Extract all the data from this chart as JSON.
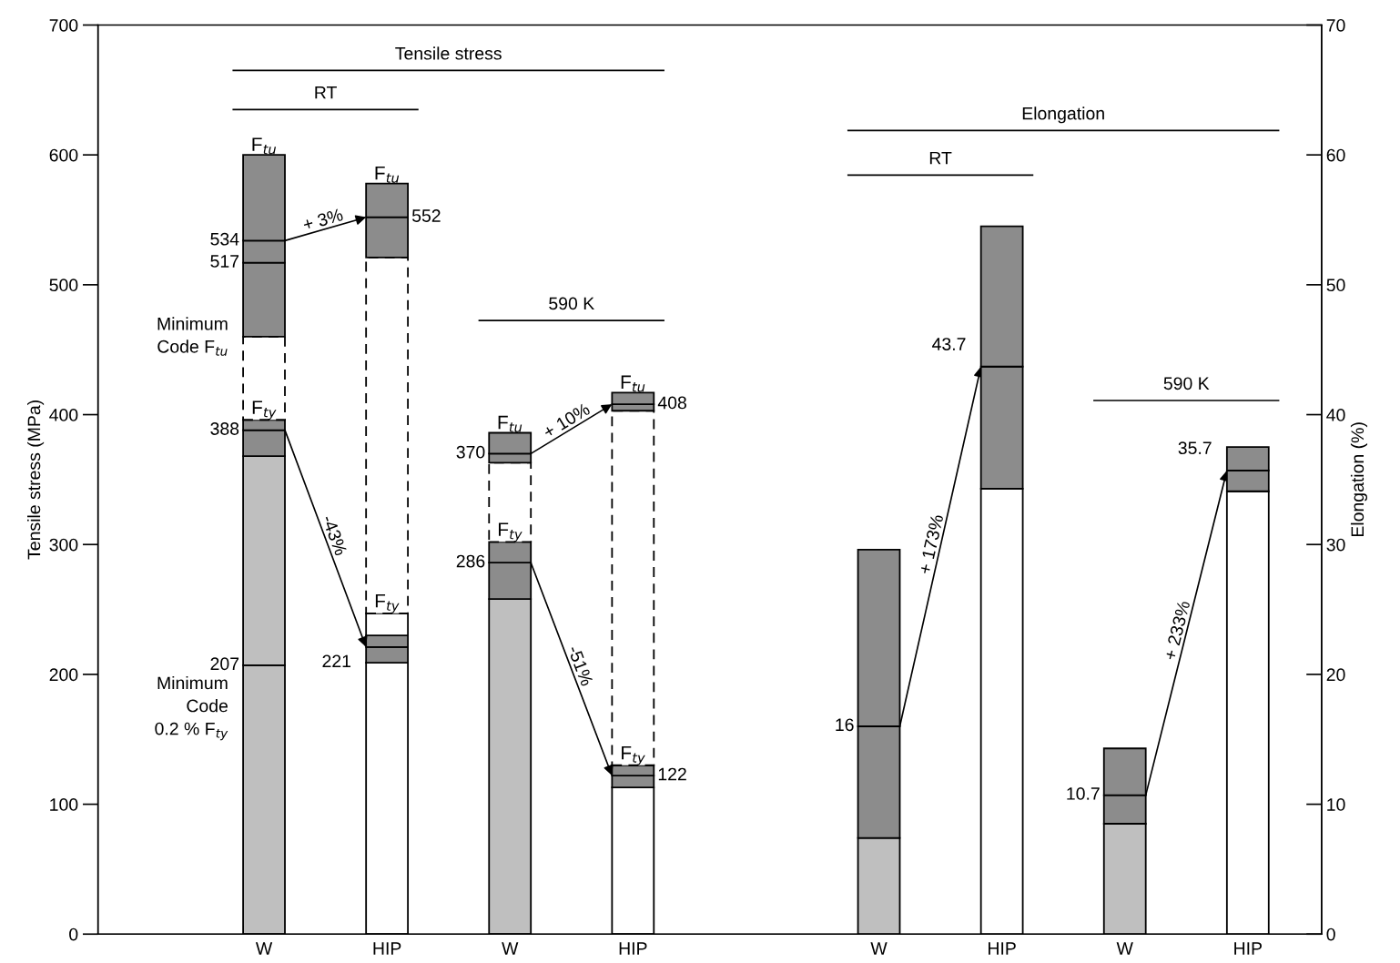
{
  "chart_data": {
    "type": "bar",
    "stacked": true,
    "categories": [
      "W",
      "HIP",
      "W",
      "HIP",
      null,
      "W",
      "HIP",
      "W",
      "HIP"
    ],
    "ylabel": "Tensile stress (MPa)",
    "y2label": "Elongation (%)",
    "ylim": [
      0,
      700
    ],
    "yticks": [
      0,
      100,
      200,
      300,
      400,
      500,
      600,
      700
    ],
    "y2lim": [
      0,
      70
    ],
    "y2ticks": [
      0,
      10,
      20,
      30,
      40,
      50,
      60,
      70
    ],
    "series": [
      {
        "axis": "y",
        "values": [
          207,
          209,
          258,
          113,
          null,
          null,
          null,
          null,
          null
        ],
        "colors": [
          "#bfbfbf",
          "#ffffff",
          "#bfbfbf",
          "#ffffff",
          null,
          null,
          null,
          null,
          null
        ]
      },
      {
        "axis": "y",
        "values": [
          161,
          null,
          null,
          null,
          null,
          null,
          null,
          null,
          null
        ],
        "colors": [
          "#bfbfbf",
          null,
          null,
          null,
          null,
          null,
          null,
          null,
          null
        ]
      },
      {
        "axis": "y",
        "values": [
          20,
          12,
          28,
          9,
          null,
          null,
          null,
          null,
          null
        ],
        "colors": [
          "#8c8c8c",
          "#8c8c8c",
          "#8c8c8c",
          "#8c8c8c",
          null,
          null,
          null,
          null,
          null
        ]
      },
      {
        "axis": "y",
        "values": [
          8,
          9,
          16,
          8,
          null,
          null,
          null,
          null,
          null
        ],
        "colors": [
          "#8c8c8c",
          "#8c8c8c",
          "#8c8c8c",
          "#8c8c8c",
          null,
          null,
          null,
          null,
          null
        ]
      },
      {
        "axis": "y",
        "values": [
          null,
          17,
          null,
          null,
          null,
          null,
          null,
          null,
          null
        ],
        "colors": [
          null,
          "#ffffff",
          null,
          null,
          null,
          null,
          null,
          null,
          null
        ]
      },
      {
        "axis": "y",
        "line_style": "dashed",
        "values": [
          64,
          274,
          61,
          273,
          null,
          null,
          null,
          null,
          null
        ],
        "colors": [
          "#ffffff",
          "#ffffff",
          "#ffffff",
          "#ffffff",
          null,
          null,
          null,
          null,
          null
        ]
      },
      {
        "axis": "y",
        "values": [
          57,
          31,
          7,
          5,
          null,
          null,
          null,
          null,
          null
        ],
        "colors": [
          "#8c8c8c",
          "#8c8c8c",
          "#8c8c8c",
          "#8c8c8c",
          null,
          null,
          null,
          null,
          null
        ]
      },
      {
        "axis": "y",
        "values": [
          17,
          null,
          null,
          null,
          null,
          null,
          null,
          null,
          null
        ],
        "colors": [
          "#8c8c8c",
          null,
          null,
          null,
          null,
          null,
          null,
          null,
          null
        ]
      },
      {
        "axis": "y",
        "values": [
          66,
          26,
          16,
          9,
          null,
          null,
          null,
          null,
          null
        ],
        "colors": [
          "#8c8c8c",
          "#8c8c8c",
          "#8c8c8c",
          "#8c8c8c",
          null,
          null,
          null,
          null,
          null
        ]
      },
      {
        "axis": "y2",
        "values": [
          null,
          null,
          null,
          null,
          null,
          7.4,
          34.3,
          8.5,
          34.1
        ],
        "colors": [
          null,
          null,
          null,
          null,
          null,
          "#bfbfbf",
          "#ffffff",
          "#bfbfbf",
          "#ffffff"
        ]
      },
      {
        "axis": "y2",
        "values": [
          null,
          null,
          null,
          null,
          null,
          8.6,
          9.4,
          2.2,
          1.6
        ],
        "colors": [
          null,
          null,
          null,
          null,
          null,
          "#8c8c8c",
          "#8c8c8c",
          "#8c8c8c",
          "#8c8c8c"
        ]
      },
      {
        "axis": "y2",
        "values": [
          null,
          null,
          null,
          null,
          null,
          13.6,
          10.8,
          3.6,
          1.8
        ],
        "colors": [
          null,
          null,
          null,
          null,
          null,
          "#8c8c8c",
          "#8c8c8c",
          "#8c8c8c",
          "#8c8c8c"
        ]
      }
    ],
    "annotations": [
      "+ 3%",
      "-43%",
      "+ 10%",
      "-51%",
      "+ 173%",
      "+ 233%",
      "Tensile stress",
      "RT",
      "590 K",
      "Elongation",
      "RT",
      "590 K",
      {
        "text": "F$_{tu}$",
        "y": 600
      },
      {
        "text": "F$_{ty}$",
        "y": 396
      },
      {
        "text": "F$_{tu}$",
        "y": 578
      },
      {
        "text": "F$_{ty}$",
        "y": 247
      },
      {
        "text": "F$_{tu}$",
        "y": 386
      },
      {
        "text": "F$_{ty}$",
        "y": 302
      },
      {
        "text": "F$_{tu}$",
        "y": 417
      },
      {
        "text": "F$_{ty}$",
        "y": 130
      },
      "Minimum\nCode F$_{tu}$",
      "Minimum\nCode\n0.2 % F$_{ty}$",
      "534",
      "517",
      "388",
      "207",
      "552",
      {
        "text": "221",
        "x": "HIP",
        "y": 221
      },
      "370",
      "286",
      "408",
      "122",
      "16",
      "43.7",
      "10.7",
      "35.7"
    ]
  }
}
